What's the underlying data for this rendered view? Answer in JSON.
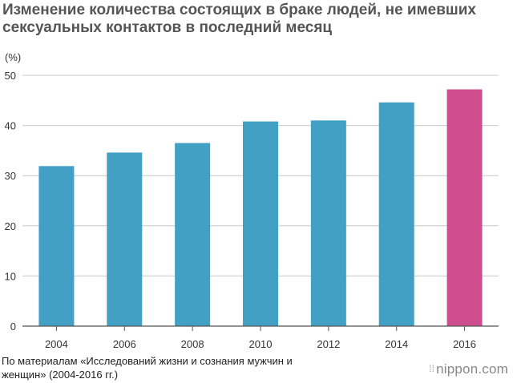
{
  "chart_data": {
    "type": "bar",
    "title": "Изменение количества состоящих в браке людей, не имевших сексуальных контактов в последний месяц",
    "unit_label": "(%)",
    "categories": [
      "2004",
      "2006",
      "2008",
      "2010",
      "2012",
      "2014",
      "2016"
    ],
    "values": [
      31.9,
      34.6,
      36.5,
      40.8,
      41.0,
      44.6,
      47.2
    ],
    "highlight_index": 6,
    "colors": {
      "bar": "#41a0c4",
      "highlight": "#cf4d8e",
      "grid": "#c8c8c8",
      "axis": "#555555"
    },
    "yticks": [
      0,
      10,
      20,
      30,
      40,
      50
    ],
    "ylim": [
      0,
      50
    ],
    "grid": true,
    "legend": "none"
  },
  "footer": {
    "source": "По материалам «Исследований жизни и сознания мужчин и женщин» (2004-2016 гг.)"
  },
  "brand": {
    "logo_text": "nippon.com",
    "dots": "⁞⁞"
  }
}
